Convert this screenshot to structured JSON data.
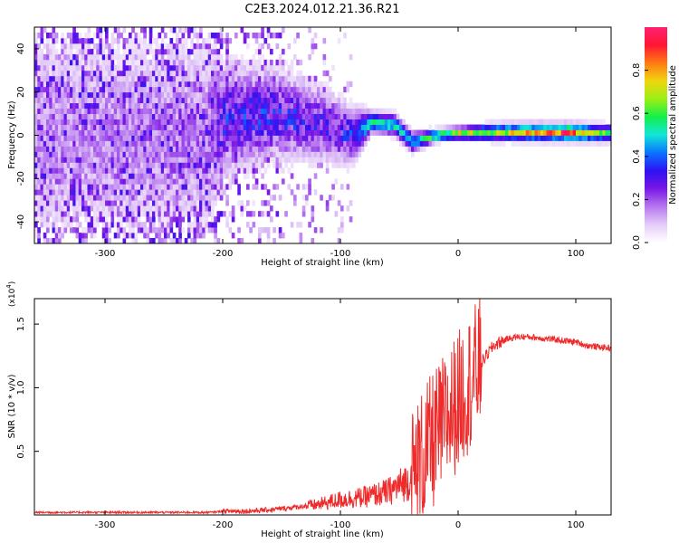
{
  "title": "C2E3.2024.012.21.36.R21",
  "chart_data": [
    {
      "type": "heatmap",
      "xlabel": "Height of straight line (km)",
      "ylabel": "Frequency (Hz)",
      "xlim": [
        -360,
        130
      ],
      "ylim": [
        -50,
        50
      ],
      "x_ticks": [
        -300,
        -200,
        -100,
        0,
        100
      ],
      "y_ticks": [
        -40,
        -20,
        0,
        20,
        40
      ],
      "colorbar": {
        "label": "Normalized spectral amplitude",
        "range": [
          0,
          1
        ],
        "ticks": [
          "0.0",
          "0.2",
          "0.4",
          "0.6",
          "0.8"
        ],
        "colormap": [
          "#ffffff",
          "#e4cdf8",
          "#b777ef",
          "#7a17e6",
          "#2d12f2",
          "#0a74ff",
          "#12e6d8",
          "#14ef4b",
          "#9bef14",
          "#f0d60e",
          "#ff7a14",
          "#ff1733",
          "#ff1f72"
        ]
      },
      "ridge": [
        {
          "x": -360,
          "y": 0,
          "amp": 0.14,
          "width": 48
        },
        {
          "x": -215,
          "y": 0,
          "amp": 0.16,
          "width": 46
        },
        {
          "x": -200,
          "y": 8,
          "amp": 0.3,
          "width": 26
        },
        {
          "x": -160,
          "y": 10,
          "amp": 0.3,
          "width": 22
        },
        {
          "x": -120,
          "y": 6,
          "amp": 0.28,
          "width": 18
        },
        {
          "x": -90,
          "y": 0,
          "amp": 0.3,
          "width": 14
        },
        {
          "x": -75,
          "y": 6,
          "amp": 0.55,
          "width": 5
        },
        {
          "x": -55,
          "y": 5,
          "amp": 0.55,
          "width": 5
        },
        {
          "x": -40,
          "y": -3,
          "amp": 0.45,
          "width": 5
        },
        {
          "x": -20,
          "y": 0,
          "amp": 0.6,
          "width": 3
        },
        {
          "x": 0,
          "y": 1,
          "amp": 0.7,
          "width": 3
        },
        {
          "x": 30,
          "y": 1.5,
          "amp": 0.65,
          "width": 4
        },
        {
          "x": 90,
          "y": 1.5,
          "amp": 0.9,
          "width": 4
        },
        {
          "x": 130,
          "y": 1,
          "amp": 0.55,
          "width": 4
        }
      ]
    },
    {
      "type": "line",
      "xlabel": "Height of straight line (km)",
      "ylabel": "SNR (10 * v/v)",
      "y_multiplier": "(x10",
      "y_multiplier_exp": "4",
      "xlim": [
        -360,
        130
      ],
      "ylim": [
        0,
        1.7
      ],
      "x_ticks": [
        -300,
        -200,
        -100,
        0,
        100
      ],
      "y_ticks": [
        "0.5",
        "1.0",
        "1.5"
      ],
      "series": [
        {
          "color": "#ee2a2a",
          "x": [
            -360,
            -300,
            -250,
            -210,
            -200,
            -180,
            -160,
            -140,
            -120,
            -100,
            -80,
            -60,
            -40,
            -30,
            -20,
            -10,
            0,
            10,
            20,
            30,
            40,
            50,
            60,
            80,
            100,
            110,
            120,
            130
          ],
          "values": [
            0.02,
            0.02,
            0.02,
            0.02,
            0.03,
            0.03,
            0.04,
            0.06,
            0.08,
            0.12,
            0.14,
            0.18,
            0.28,
            0.45,
            0.6,
            0.75,
            0.9,
            1.05,
            1.2,
            1.33,
            1.38,
            1.4,
            1.4,
            1.38,
            1.36,
            1.33,
            1.32,
            1.31
          ]
        }
      ]
    }
  ]
}
